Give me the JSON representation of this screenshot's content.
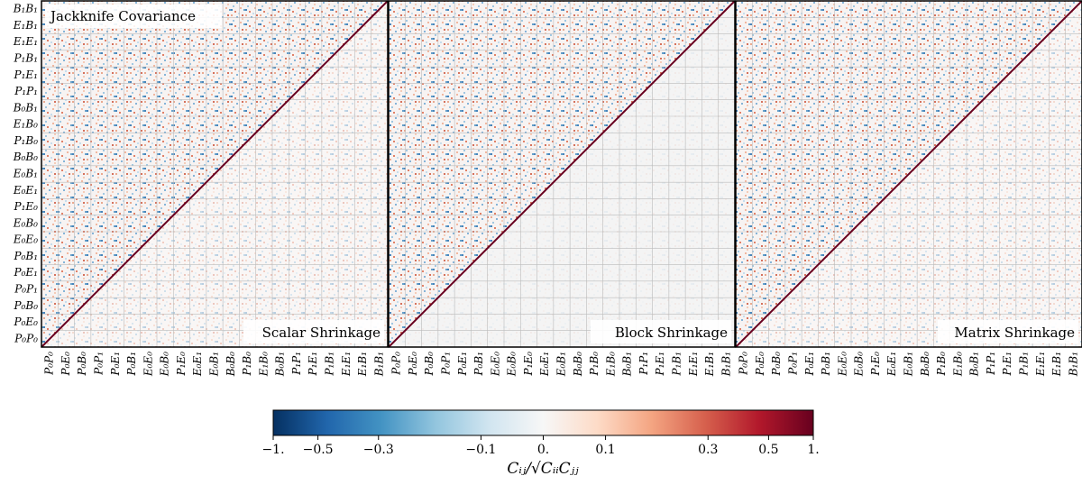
{
  "chart_data": [
    {
      "type": "heatmap",
      "upper_title": "Jackknife Covariance",
      "title": "Scalar Shrinkage",
      "categories": [
        "P₀P₀",
        "P₀E₀",
        "P₀B₀",
        "P₀P₁",
        "P₀E₁",
        "P₀B₁",
        "E₀E₀",
        "E₀B₀",
        "P₁E₀",
        "E₀E₁",
        "E₀B₁",
        "B₀B₀",
        "P₁B₀",
        "E₁B₀",
        "B₀B₁",
        "P₁P₁",
        "P₁E₁",
        "P₁B₁",
        "E₁E₁",
        "E₁B₁",
        "B₁B₁"
      ]
    },
    {
      "type": "heatmap",
      "title": "Block Shrinkage",
      "categories": [
        "P₀P₀",
        "P₀E₀",
        "P₀B₀",
        "P₀P₁",
        "P₀E₁",
        "P₀B₁",
        "E₀E₀",
        "E₀B₀",
        "P₁E₀",
        "E₀E₁",
        "E₀B₁",
        "B₀B₀",
        "P₁B₀",
        "E₁B₀",
        "B₀B₁",
        "P₁P₁",
        "P₁E₁",
        "P₁B₁",
        "E₁E₁",
        "E₁B₁",
        "B₁B₁"
      ]
    },
    {
      "type": "heatmap",
      "title": "Matrix Shrinkage",
      "categories": [
        "P₀P₀",
        "P₀E₀",
        "P₀B₀",
        "P₀P₁",
        "P₀E₁",
        "P₀B₁",
        "E₀E₀",
        "E₀B₀",
        "P₁E₀",
        "E₀E₁",
        "E₀B₁",
        "B₀B₀",
        "P₁B₀",
        "E₁B₀",
        "B₀B₁",
        "P₁P₁",
        "P₁E₁",
        "P₁B₁",
        "E₁E₁",
        "E₁B₁",
        "B₁B₁"
      ]
    }
  ],
  "colorbar": {
    "label": "Cᵢⱼ/√CᵢᵢCⱼⱼ",
    "lim": [
      -1,
      1
    ],
    "ticks": [
      {
        "value": -1,
        "label": "−1."
      },
      {
        "value": -0.5,
        "label": "−0.5"
      },
      {
        "value": -0.3,
        "label": "−0.3"
      },
      {
        "value": -0.1,
        "label": "−0.1"
      },
      {
        "value": 0,
        "label": "0."
      },
      0.1,
      0.3,
      0.5,
      {
        "value": 1,
        "label": "1."
      }
    ]
  }
}
